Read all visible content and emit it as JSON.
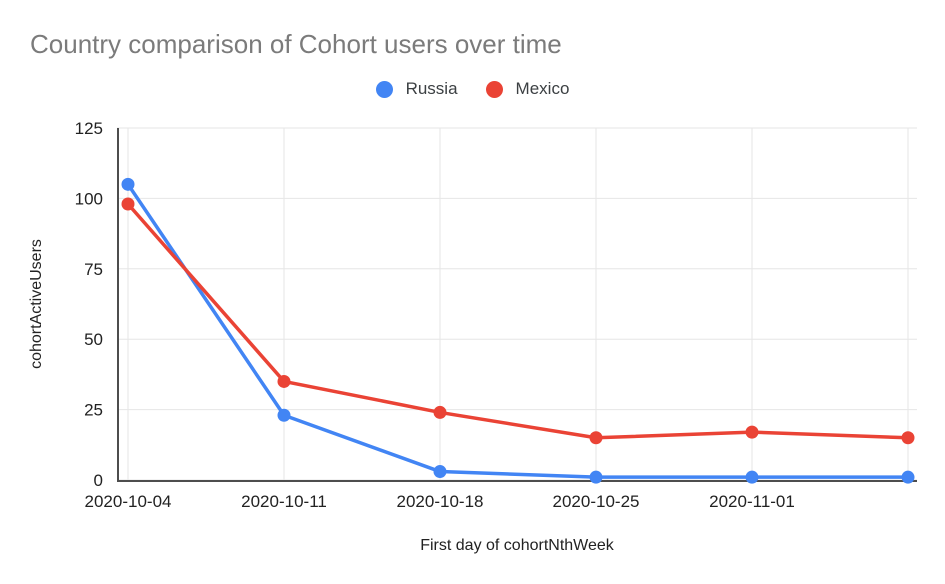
{
  "page": {
    "background": "#ffffff"
  },
  "chart_data": {
    "type": "line",
    "title": "Country comparison of Cohort users over time",
    "xlabel": "First day of cohortNthWeek",
    "ylabel": "cohortActiveUsers",
    "categories": [
      "2020-10-04",
      "2020-10-11",
      "2020-10-18",
      "2020-10-25",
      "2020-11-01",
      ""
    ],
    "series": [
      {
        "name": "Russia",
        "color": "#4285F4",
        "values": [
          105,
          23,
          3,
          1,
          1,
          1
        ]
      },
      {
        "name": "Mexico",
        "color": "#EA4335",
        "values": [
          98,
          35,
          24,
          15,
          17,
          15
        ]
      }
    ],
    "ylim": [
      0,
      125
    ],
    "y_ticks": [
      0,
      25,
      50,
      75,
      100,
      125
    ],
    "grid": true,
    "legend_position": "top-center",
    "marker": "circle",
    "styles": {
      "title_color": "#7b7b7b",
      "tick_label_color": "#222222",
      "axis_title_color": "#222222",
      "legend_label_color": "#3c4043",
      "gridline_color": "#e6e6e6",
      "axis_line_color": "#4d4d4d"
    }
  }
}
